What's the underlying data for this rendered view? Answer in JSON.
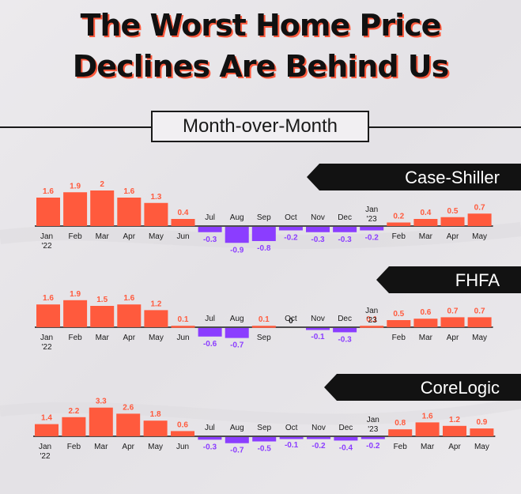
{
  "title_line1": "The Worst Home Price",
  "title_line2": "Declines Are Behind Us",
  "subtitle": "Month-over-Month",
  "colors": {
    "positive": "#ff5a3d",
    "negative": "#8b3dff",
    "banner": "#121212",
    "text": "#1a1a1a"
  },
  "chart_data": [
    {
      "type": "bar",
      "title": "Case-Shiller",
      "categories": [
        "Jan '22",
        "Feb",
        "Mar",
        "Apr",
        "May",
        "Jun",
        "Jul",
        "Aug",
        "Sep",
        "Oct",
        "Nov",
        "Dec",
        "Jan '23",
        "Feb",
        "Mar",
        "Apr",
        "May"
      ],
      "values": [
        1.6,
        1.9,
        2,
        1.6,
        1.3,
        0.4,
        -0.3,
        -0.9,
        -0.8,
        -0.2,
        -0.3,
        -0.3,
        -0.2,
        0.2,
        0.4,
        0.5,
        0.7
      ],
      "value_labels": [
        "1.6",
        "1.9",
        "2",
        "1.6",
        "1.3",
        "0.4",
        "-0.3",
        "-0.9",
        "-0.8",
        "-0.2",
        "-0.3",
        "-0.3",
        "-0.2",
        "0.2",
        "0.4",
        "0.5",
        "0.7"
      ]
    },
    {
      "type": "bar",
      "title": "FHFA",
      "categories": [
        "Jan '22",
        "Feb",
        "Mar",
        "Apr",
        "May",
        "Jun",
        "Jul",
        "Aug",
        "Sep",
        "Oct",
        "Nov",
        "Dec",
        "Jan '23",
        "Feb",
        "Mar",
        "Apr",
        "May"
      ],
      "values": [
        1.6,
        1.9,
        1.5,
        1.6,
        1.2,
        0.1,
        -0.6,
        -0.7,
        0.1,
        0,
        -0.1,
        -0.3,
        0.1,
        0.5,
        0.6,
        0.7,
        0.7
      ],
      "value_labels": [
        "1.6",
        "1.9",
        "1.5",
        "1.6",
        "1.2",
        "0.1",
        "-0.6",
        "-0.7",
        "0.1",
        "0",
        "-0.1",
        "-0.3",
        "0.1",
        "0.5",
        "0.6",
        "0.7",
        "0.7"
      ]
    },
    {
      "type": "bar",
      "title": "CoreLogic",
      "categories": [
        "Jan '22",
        "Feb",
        "Mar",
        "Apr",
        "May",
        "Jun",
        "Jul",
        "Aug",
        "Sep",
        "Oct",
        "Nov",
        "Dec",
        "Jan '23",
        "Feb",
        "Mar",
        "Apr",
        "May"
      ],
      "values": [
        1.4,
        2.2,
        3.3,
        2.6,
        1.8,
        0.6,
        -0.3,
        -0.7,
        -0.5,
        -0.1,
        -0.2,
        -0.4,
        -0.2,
        0.8,
        1.6,
        1.2,
        0.9
      ],
      "value_labels": [
        "1.4",
        "2.2",
        "3.3",
        "2.6",
        "1.8",
        "0.6",
        "-0.3",
        "-0.7",
        "-0.5",
        "-0.1",
        "-0.2",
        "-0.4",
        "-0.2",
        "0.8",
        "1.6",
        "1.2",
        "0.9"
      ]
    }
  ]
}
